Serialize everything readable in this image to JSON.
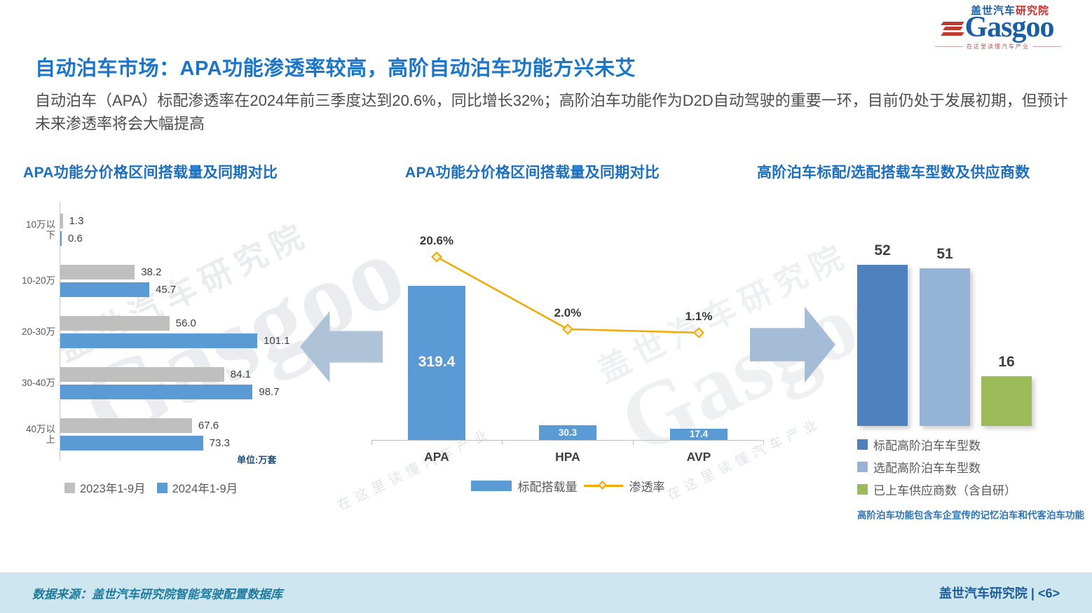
{
  "logo": {
    "cn_blue": "盖世汽车",
    "cn_red": "研究院",
    "en": "Gasgoo",
    "tagline": "在这里读懂汽车产业"
  },
  "watermark": {
    "cn": "盖世汽车研究院",
    "en": "Gasgoo",
    "tagline": "在这里读懂汽车产业"
  },
  "header": {
    "title": "自动泊车市场：APA功能渗透率较高，高阶自动泊车功能方兴未艾",
    "subtitle": "自动泊车（APA）标配渗透率在2024年前三季度达到20.6%，同比增长32%；高阶泊车功能作为D2D自动驾驶的重要一环，目前仍处于发展初期，但预计未来渗透率将会大幅提高"
  },
  "chart_data": [
    {
      "type": "bar",
      "orientation": "horizontal",
      "title": "APA功能分价格区间搭载量及同期对比",
      "unit_label": "单位:万套",
      "categories": [
        "10万以下",
        "10-20万",
        "20-30万",
        "30-40万",
        "40万以上"
      ],
      "series": [
        {
          "name": "2023年1-9月",
          "color": "#BFBFBF",
          "values": [
            1.3,
            38.2,
            56.0,
            84.1,
            67.6
          ]
        },
        {
          "name": "2024年1-9月",
          "color": "#5B9BD5",
          "values": [
            0.6,
            45.7,
            101.1,
            98.7,
            73.3
          ]
        }
      ],
      "legend_position": "bottom",
      "grid": false
    },
    {
      "type": "combo-bar-line",
      "title": "APA功能分价格区间搭载量及同期对比",
      "categories": [
        "APA",
        "HPA",
        "AVP"
      ],
      "bar_series": {
        "name": "标配搭载量",
        "color": "#5B9BD5",
        "values": [
          319.4,
          30.3,
          17.4
        ],
        "unit": "万套"
      },
      "line_series": {
        "name": "渗透率",
        "color": "#F2A900",
        "values_pct": [
          20.6,
          2.0,
          1.1
        ],
        "labels": [
          "20.6%",
          "2.0%",
          "1.1%"
        ]
      },
      "legend_position": "bottom",
      "grid": false
    },
    {
      "type": "bar",
      "title": "高阶泊车标配/选配搭载车型数及供应商数",
      "bars": [
        {
          "label": "标配高阶泊车车型数",
          "value": 52,
          "color": "#4E81BD"
        },
        {
          "label": "选配高阶泊车车型数",
          "value": 51,
          "color": "#95B3D7"
        },
        {
          "label": "已上车供应商数（含自研）",
          "value": 16,
          "color": "#9BBB59"
        }
      ],
      "note": "高阶泊车功能包含车企宣传的记忆泊车和代客泊车功能",
      "legend_position": "bottom",
      "grid": false
    }
  ],
  "footer": {
    "source": "数据来源：盖世汽车研究院智能驾驶配置数据库",
    "page_label": "盖世汽车研究院 | <6>"
  }
}
